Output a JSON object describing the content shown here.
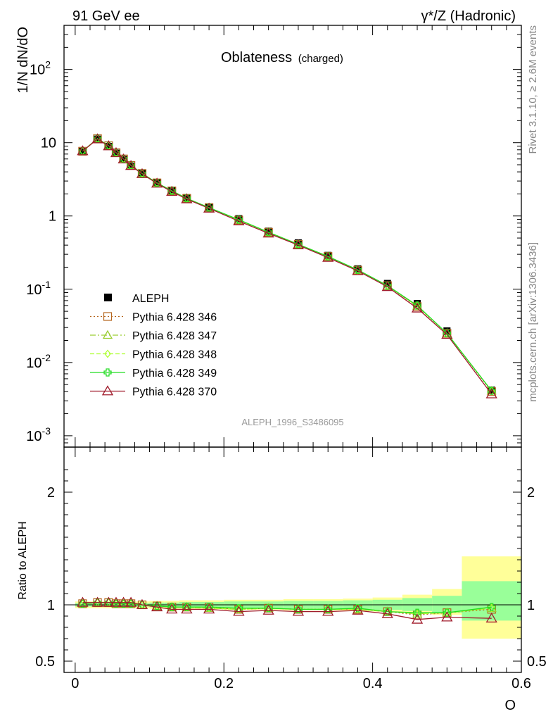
{
  "header": {
    "left": "91 GeV ee",
    "right": "γ*/Z (Hadronic)"
  },
  "side_labels": {
    "rivet": "Rivet 3.1.10, ≥ 2.6M events",
    "mcplots": "mcplots.cern.ch [arXiv:1306.3436]"
  },
  "chart_data": [
    {
      "type": "line",
      "title": "Oblateness",
      "subtitle": "(charged)",
      "ylabel": "1/N dN/dO",
      "yscale": "log",
      "ylim": [
        0.0007,
        400
      ],
      "xlim": [
        -0.015,
        0.6
      ],
      "ytick_labels": [
        {
          "value": 0.001,
          "base": "10",
          "exp": "-3"
        },
        {
          "value": 0.01,
          "base": "10",
          "exp": "-2"
        },
        {
          "value": 0.1,
          "base": "10",
          "exp": "-1"
        },
        {
          "value": 1,
          "base": "1",
          "exp": ""
        },
        {
          "value": 10,
          "base": "10",
          "exp": ""
        },
        {
          "value": 100,
          "base": "10",
          "exp": "2"
        }
      ],
      "watermark": "ALEPH_1996_S3486095",
      "x": [
        0.01,
        0.03,
        0.045,
        0.055,
        0.065,
        0.075,
        0.09,
        0.11,
        0.13,
        0.15,
        0.18,
        0.22,
        0.26,
        0.3,
        0.34,
        0.38,
        0.42,
        0.46,
        0.5,
        0.56
      ],
      "data": {
        "name": "ALEPH",
        "values": [
          7.6,
          11.2,
          8.9,
          7.2,
          5.9,
          4.8,
          3.8,
          2.85,
          2.25,
          1.78,
          1.33,
          0.92,
          0.62,
          0.43,
          0.29,
          0.19,
          0.12,
          0.064,
          0.027,
          0.0042
        ]
      },
      "series": [
        {
          "name": "Pythia 6.428 346",
          "color": "#b5651d",
          "dash": "2,3",
          "marker": "square",
          "values": [
            7.65,
            11.4,
            9.1,
            7.3,
            6.0,
            4.9,
            3.8,
            2.83,
            2.2,
            1.74,
            1.3,
            0.88,
            0.6,
            0.41,
            0.28,
            0.182,
            0.112,
            0.058,
            0.025,
            0.004
          ]
        },
        {
          "name": "Pythia 6.428 347",
          "color": "#9acd32",
          "dash": "8,3,2,3",
          "marker": "triangle",
          "values": [
            7.65,
            11.4,
            9.1,
            7.3,
            6.0,
            4.9,
            3.8,
            2.83,
            2.2,
            1.74,
            1.29,
            0.88,
            0.6,
            0.41,
            0.28,
            0.182,
            0.111,
            0.059,
            0.025,
            0.0041
          ]
        },
        {
          "name": "Pythia 6.428 348",
          "color": "#adff2f",
          "dash": "6,3",
          "marker": "diamond",
          "values": [
            7.65,
            11.4,
            9.1,
            7.3,
            6.0,
            4.9,
            3.8,
            2.83,
            2.2,
            1.74,
            1.29,
            0.88,
            0.6,
            0.41,
            0.28,
            0.182,
            0.112,
            0.059,
            0.025,
            0.0041
          ]
        },
        {
          "name": "Pythia 6.428 349",
          "color": "#22dd22",
          "dash": "",
          "marker": "cross",
          "values": [
            7.65,
            11.4,
            9.1,
            7.3,
            6.0,
            4.9,
            3.8,
            2.83,
            2.2,
            1.74,
            1.3,
            0.89,
            0.6,
            0.41,
            0.28,
            0.184,
            0.112,
            0.06,
            0.025,
            0.0041
          ]
        },
        {
          "name": "Pythia 6.428 370",
          "color": "#a01c2c",
          "dash": "",
          "marker": "triangle-open",
          "values": [
            7.7,
            11.2,
            9.0,
            7.25,
            5.95,
            4.85,
            3.75,
            2.78,
            2.15,
            1.7,
            1.27,
            0.85,
            0.58,
            0.4,
            0.27,
            0.178,
            0.108,
            0.055,
            0.024,
            0.0037
          ]
        }
      ]
    },
    {
      "type": "line",
      "ylabel": "Ratio to ALEPH",
      "xlabel": "O",
      "ylim": [
        0.4,
        2.4
      ],
      "ytick_labels": [
        {
          "value": 0.5,
          "label": "0.5"
        },
        {
          "value": 1,
          "label": "1"
        },
        {
          "value": 2,
          "label": "2"
        }
      ],
      "xtick_labels": [
        {
          "value": 0,
          "label": "0"
        },
        {
          "value": 0.2,
          "label": "0.2"
        },
        {
          "value": 0.4,
          "label": "0.4"
        },
        {
          "value": 0.6,
          "label": "0.6"
        }
      ],
      "bands": {
        "x_edges": [
          0.0,
          0.02,
          0.04,
          0.05,
          0.06,
          0.07,
          0.08,
          0.1,
          0.12,
          0.14,
          0.16,
          0.2,
          0.24,
          0.28,
          0.32,
          0.36,
          0.4,
          0.44,
          0.48,
          0.52,
          0.6
        ],
        "stat_sys": [
          [
            0.97,
            1.03
          ],
          [
            0.97,
            1.03
          ],
          [
            0.97,
            1.03
          ],
          [
            0.97,
            1.03
          ],
          [
            0.97,
            1.03
          ],
          [
            0.97,
            1.03
          ],
          [
            0.97,
            1.03
          ],
          [
            0.965,
            1.035
          ],
          [
            0.965,
            1.035
          ],
          [
            0.96,
            1.04
          ],
          [
            0.96,
            1.04
          ],
          [
            0.955,
            1.045
          ],
          [
            0.955,
            1.045
          ],
          [
            0.95,
            1.05
          ],
          [
            0.95,
            1.05
          ],
          [
            0.945,
            1.055
          ],
          [
            0.94,
            1.065
          ],
          [
            0.93,
            1.09
          ],
          [
            0.91,
            1.14
          ],
          [
            0.7,
            1.43
          ]
        ],
        "stat": [
          [
            0.985,
            1.015
          ],
          [
            0.985,
            1.015
          ],
          [
            0.985,
            1.015
          ],
          [
            0.985,
            1.015
          ],
          [
            0.985,
            1.015
          ],
          [
            0.985,
            1.015
          ],
          [
            0.985,
            1.015
          ],
          [
            0.98,
            1.02
          ],
          [
            0.98,
            1.02
          ],
          [
            0.975,
            1.025
          ],
          [
            0.975,
            1.025
          ],
          [
            0.97,
            1.03
          ],
          [
            0.97,
            1.03
          ],
          [
            0.965,
            1.035
          ],
          [
            0.965,
            1.035
          ],
          [
            0.96,
            1.04
          ],
          [
            0.955,
            1.045
          ],
          [
            0.945,
            1.06
          ],
          [
            0.93,
            1.08
          ],
          [
            0.86,
            1.21
          ]
        ]
      },
      "series": [
        {
          "name": "Pythia 6.428 346",
          "values": [
            1.01,
            1.02,
            1.02,
            1.01,
            1.01,
            1.01,
            1.0,
            0.99,
            0.98,
            0.98,
            0.98,
            0.96,
            0.97,
            0.96,
            0.96,
            0.96,
            0.94,
            0.91,
            0.93,
            0.96
          ]
        },
        {
          "name": "Pythia 6.428 347",
          "values": [
            1.01,
            1.02,
            1.02,
            1.01,
            1.01,
            1.01,
            1.0,
            0.99,
            0.98,
            0.98,
            0.97,
            0.96,
            0.97,
            0.96,
            0.96,
            0.96,
            0.94,
            0.92,
            0.93,
            0.97
          ]
        },
        {
          "name": "Pythia 6.428 348",
          "values": [
            1.01,
            1.02,
            1.02,
            1.01,
            1.01,
            1.01,
            1.0,
            0.99,
            0.98,
            0.98,
            0.97,
            0.96,
            0.97,
            0.96,
            0.96,
            0.96,
            0.94,
            0.92,
            0.93,
            0.97
          ]
        },
        {
          "name": "Pythia 6.428 349",
          "values": [
            1.01,
            1.02,
            1.02,
            1.01,
            1.01,
            1.01,
            1.0,
            0.99,
            0.98,
            0.98,
            0.98,
            0.97,
            0.97,
            0.96,
            0.96,
            0.97,
            0.94,
            0.93,
            0.93,
            0.98
          ]
        },
        {
          "name": "Pythia 6.428 370",
          "values": [
            1.02,
            1.02,
            1.02,
            1.02,
            1.02,
            1.02,
            1.0,
            0.98,
            0.96,
            0.96,
            0.96,
            0.94,
            0.95,
            0.94,
            0.94,
            0.95,
            0.92,
            0.87,
            0.89,
            0.88
          ]
        }
      ]
    }
  ],
  "colors": {
    "band_outer": "#ffff99",
    "band_inner": "#99ff99",
    "data": "#000000"
  }
}
